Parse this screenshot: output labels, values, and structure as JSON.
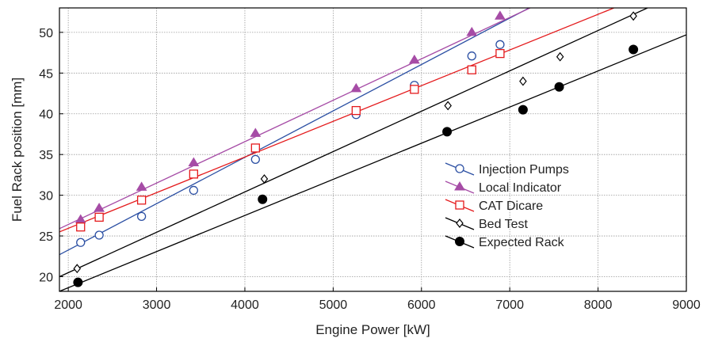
{
  "chart_data": {
    "type": "scatter",
    "xlabel": "Engine Power [kW]",
    "ylabel": "Fuel Rack position [mm]",
    "xlim": [
      1900,
      9000
    ],
    "ylim": [
      18.2,
      53
    ],
    "xticks": [
      2000,
      3000,
      4000,
      5000,
      6000,
      7000,
      8000,
      9000
    ],
    "yticks": [
      20,
      25,
      30,
      35,
      40,
      45,
      50
    ],
    "grid": true,
    "legend_position": "lower-right",
    "series": [
      {
        "name": "Injection Pumps",
        "color": "#2b4fa3",
        "marker": "open-circle",
        "points": [
          [
            2140,
            24.2
          ],
          [
            2350,
            25.1
          ],
          [
            2830,
            27.4
          ],
          [
            3420,
            30.6
          ],
          [
            4120,
            34.4
          ],
          [
            5260,
            39.9
          ],
          [
            5920,
            43.5
          ],
          [
            6570,
            47.1
          ],
          [
            6890,
            48.5
          ]
        ],
        "fit_line": [
          [
            1900,
            22.7
          ],
          [
            7220,
            53
          ]
        ]
      },
      {
        "name": "Local Indicator",
        "color": "#a64ca6",
        "marker": "filled-triangle",
        "points": [
          [
            2140,
            27.0
          ],
          [
            2350,
            28.4
          ],
          [
            2830,
            31.0
          ],
          [
            3420,
            34.0
          ],
          [
            4120,
            37.6
          ],
          [
            5260,
            43.1
          ],
          [
            5920,
            46.6
          ],
          [
            6570,
            50.0
          ],
          [
            6890,
            52.0
          ]
        ],
        "fit_line": [
          [
            1900,
            25.9
          ],
          [
            7230,
            53
          ]
        ]
      },
      {
        "name": "CAT Dicare",
        "color": "#e41a1c",
        "marker": "open-square",
        "points": [
          [
            2140,
            26.1
          ],
          [
            2350,
            27.3
          ],
          [
            2830,
            29.4
          ],
          [
            3420,
            32.6
          ],
          [
            4120,
            35.8
          ],
          [
            5260,
            40.4
          ],
          [
            5920,
            43.0
          ],
          [
            6570,
            45.4
          ],
          [
            6890,
            47.4
          ]
        ],
        "fit_line": [
          [
            1900,
            25.5
          ],
          [
            8180,
            53
          ]
        ]
      },
      {
        "name": "Bed Test",
        "color": "#000000",
        "marker": "open-diamond",
        "points": [
          [
            2100,
            21.0
          ],
          [
            4220,
            32.0
          ],
          [
            6300,
            41.0
          ],
          [
            7150,
            44.0
          ],
          [
            7570,
            47.0
          ],
          [
            8400,
            52.0
          ]
        ],
        "fit_line": [
          [
            1900,
            20.0
          ],
          [
            8560,
            53
          ]
        ]
      },
      {
        "name": "Expected Rack",
        "color": "#000000",
        "marker": "filled-circle",
        "points": [
          [
            2110,
            19.3
          ],
          [
            4200,
            29.5
          ],
          [
            6290,
            37.8
          ],
          [
            7150,
            40.5
          ],
          [
            7560,
            43.3
          ],
          [
            8400,
            47.9
          ]
        ],
        "fit_line": [
          [
            1900,
            18.2
          ],
          [
            9000,
            49.7
          ]
        ]
      }
    ]
  }
}
